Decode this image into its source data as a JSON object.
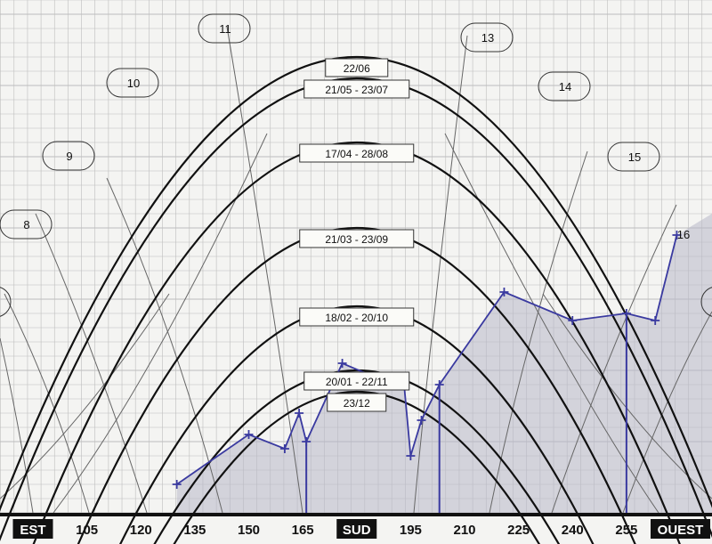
{
  "chart_data": {
    "type": "line",
    "title": "",
    "xlabel": "",
    "ylabel": "",
    "x_axis": {
      "tick_labels": [
        "EST",
        "105",
        "120",
        "135",
        "150",
        "165",
        "SUD",
        "195",
        "210",
        "225",
        "240",
        "255",
        "OUEST"
      ],
      "tick_values": [
        90,
        105,
        120,
        135,
        150,
        165,
        180,
        195,
        210,
        225,
        240,
        255,
        270
      ],
      "xlim": [
        79,
        283
      ]
    },
    "ylim": [
      0,
      72
    ],
    "grid": true,
    "sun_paths": [
      {
        "label": "22/06",
        "max_elevation": 64
      },
      {
        "label": "21/05 - 23/07",
        "max_elevation": 61
      },
      {
        "label": "17/04 - 28/08",
        "max_elevation": 52
      },
      {
        "label": "21/03 - 23/09",
        "max_elevation": 40
      },
      {
        "label": "18/02 - 20/10",
        "max_elevation": 29
      },
      {
        "label": "20/01 - 22/11",
        "max_elevation": 20
      },
      {
        "label": "23/12",
        "max_elevation": 17
      }
    ],
    "hour_labels": [
      "8",
      "9",
      "10",
      "11",
      "13",
      "14",
      "15",
      "16"
    ],
    "horizon_profile": {
      "azimuth": [
        130,
        150,
        160,
        164,
        166,
        176,
        190,
        193,
        195,
        198,
        203,
        221,
        240,
        255,
        263,
        269
      ],
      "elevation": [
        4,
        11,
        9,
        14,
        10,
        21,
        18,
        19,
        8,
        13,
        18,
        31,
        27,
        28,
        27,
        39
      ],
      "vertical_obstacles": [
        166,
        203,
        255
      ]
    },
    "colors": {
      "sun_path": "#111111",
      "hour_line": "#666666",
      "horizon": "#3a3aa0",
      "shading": "#b8b8c8",
      "grid": "#bdbdbd"
    }
  }
}
